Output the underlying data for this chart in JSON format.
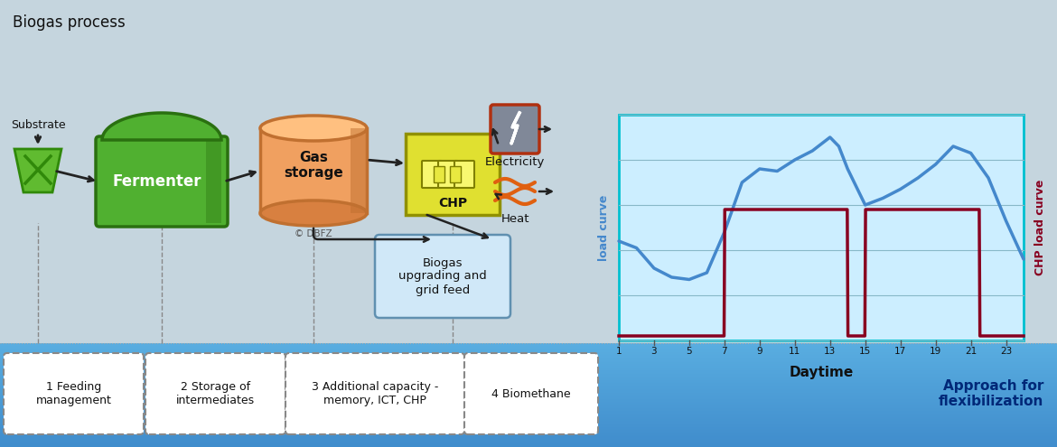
{
  "title": "Biogas process",
  "bg_color": "#c5d5de",
  "bottom_grad_top": "#5aaad8",
  "bottom_grad_bot": "#2060b0",
  "chart_bg": "#cceeff",
  "chart_border": "#00c0d0",
  "daytime_label": "Daytime",
  "left_axis_label": "load curve",
  "right_axis_label": "CHP load curve",
  "x_ticks": [
    1,
    3,
    5,
    7,
    9,
    11,
    13,
    15,
    17,
    19,
    21,
    23
  ],
  "load_curve_x": [
    1,
    2,
    3,
    4,
    5,
    6,
    7,
    8,
    9,
    10,
    11,
    12,
    13,
    13.5,
    14,
    15,
    16,
    17,
    18,
    19,
    20,
    21,
    22,
    23,
    24
  ],
  "load_curve_y": [
    0.44,
    0.41,
    0.32,
    0.28,
    0.27,
    0.3,
    0.48,
    0.7,
    0.76,
    0.75,
    0.8,
    0.84,
    0.9,
    0.86,
    0.76,
    0.6,
    0.63,
    0.67,
    0.72,
    0.78,
    0.86,
    0.83,
    0.72,
    0.53,
    0.36
  ],
  "chp_curve_x": [
    1,
    6.98,
    7.02,
    13.98,
    14.02,
    14.98,
    15.02,
    21.48,
    21.52,
    24
  ],
  "chp_curve_y": [
    0.02,
    0.02,
    0.58,
    0.58,
    0.02,
    0.02,
    0.58,
    0.58,
    0.02,
    0.02
  ],
  "load_curve_color": "#4488cc",
  "chp_curve_color": "#880020",
  "fermenter_color": "#50b030",
  "fermenter_dark": "#2a7010",
  "fermenter_light": "#70d050",
  "gas_storage_color": "#f0a060",
  "gas_storage_dark": "#c07030",
  "gas_storage_light": "#ffc080",
  "chp_box_color": "#e0e030",
  "chp_box_dark": "#909000",
  "chp_box_light": "#f8f860",
  "substrate_color": "#60bb30",
  "substrate_dark": "#30890a",
  "biogas_upg_color": "#d0e8f8",
  "biogas_upg_border": "#6090b0",
  "elec_bg": "#808898",
  "elec_border": "#c04010",
  "heat_color": "#e06010",
  "box_bg": "#ffffff",
  "box_border": "#888888",
  "approach_color": "#002878",
  "dbfz_text": "© DBFZ",
  "electricity_label": "Electricity",
  "heat_label": "Heat",
  "chp_label": "CHP",
  "biogas_label": "Biogas\nupgrading and\ngrid feed",
  "substrate_label": "Substrate",
  "fermenter_label": "Fermenter",
  "gas_storage_label": "Gas\nstorage",
  "approach_text": "Approach for\nflexibilization"
}
